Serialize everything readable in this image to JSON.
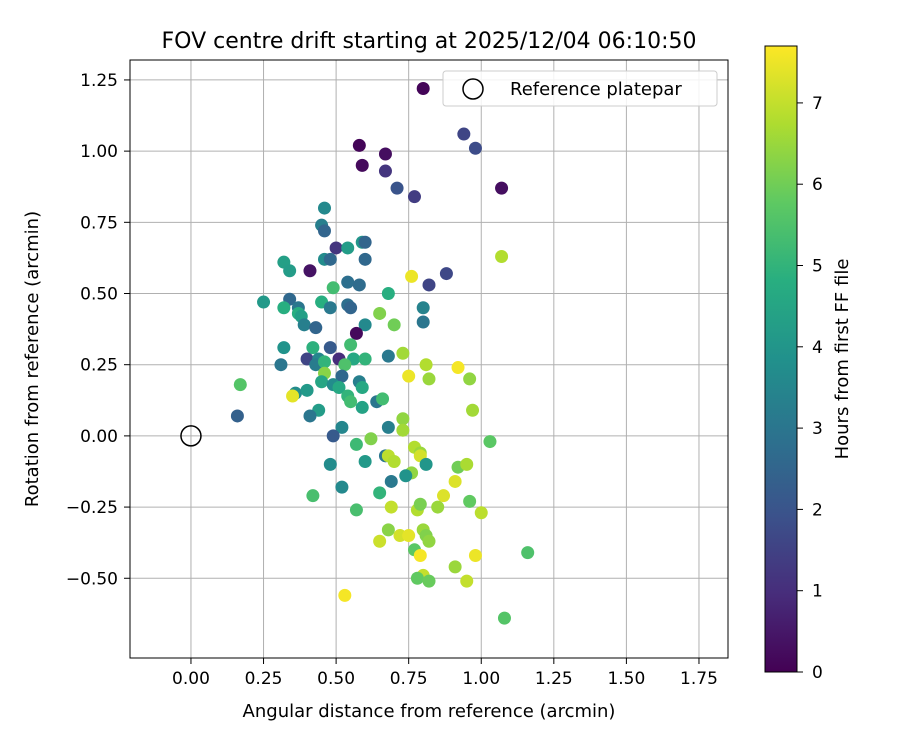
{
  "chart_data": {
    "type": "scatter",
    "title": "FOV centre drift starting at 2025/12/04 06:10:50",
    "xlabel": "Angular distance from reference (arcmin)",
    "ylabel": "Rotation from reference (arcmin)",
    "xlim": [
      -0.21,
      1.85
    ],
    "ylim": [
      -0.78,
      1.32
    ],
    "xticks": [
      0.0,
      0.25,
      0.5,
      0.75,
      1.0,
      1.25,
      1.5,
      1.75
    ],
    "xtick_labels": [
      "0.00",
      "0.25",
      "0.50",
      "0.75",
      "1.00",
      "1.25",
      "1.50",
      "1.75"
    ],
    "yticks": [
      -0.5,
      -0.25,
      0.0,
      0.25,
      0.5,
      0.75,
      1.0,
      1.25
    ],
    "ytick_labels": [
      "−0.50",
      "−0.25",
      "0.00",
      "0.25",
      "0.50",
      "0.75",
      "1.00",
      "1.25"
    ],
    "grid": true,
    "legend": {
      "location": "top-right",
      "entries": [
        "Reference platepar"
      ]
    },
    "reference_point": {
      "x": 0.0,
      "y": 0.0,
      "label": "Reference platepar"
    },
    "colorbar": {
      "label": "Hours from first FF file",
      "colormap": "viridis",
      "range": [
        0,
        7.7
      ],
      "ticks": [
        0,
        1,
        2,
        3,
        4,
        5,
        6,
        7
      ],
      "tick_labels": [
        "0",
        "1",
        "2",
        "3",
        "4",
        "5",
        "6",
        "7"
      ]
    },
    "points": [
      {
        "x": 0.8,
        "y": 1.22,
        "t": 0.1
      },
      {
        "x": 0.58,
        "y": 1.02,
        "t": 0.1
      },
      {
        "x": 0.67,
        "y": 0.99,
        "t": 0.3
      },
      {
        "x": 0.59,
        "y": 0.95,
        "t": 0.2
      },
      {
        "x": 0.94,
        "y": 1.06,
        "t": 1.6
      },
      {
        "x": 0.98,
        "y": 1.01,
        "t": 1.8
      },
      {
        "x": 0.67,
        "y": 0.93,
        "t": 1.2
      },
      {
        "x": 1.07,
        "y": 0.87,
        "t": 0.3
      },
      {
        "x": 0.71,
        "y": 0.87,
        "t": 2.0
      },
      {
        "x": 0.77,
        "y": 0.84,
        "t": 1.4
      },
      {
        "x": 0.46,
        "y": 0.8,
        "t": 3.6
      },
      {
        "x": 0.45,
        "y": 0.74,
        "t": 3.3
      },
      {
        "x": 0.46,
        "y": 0.72,
        "t": 2.5
      },
      {
        "x": 0.59,
        "y": 0.68,
        "t": 4.0
      },
      {
        "x": 0.6,
        "y": 0.68,
        "t": 2.5
      },
      {
        "x": 0.5,
        "y": 0.66,
        "t": 1.2
      },
      {
        "x": 0.54,
        "y": 0.66,
        "t": 4.2
      },
      {
        "x": 1.07,
        "y": 0.63,
        "t": 6.8
      },
      {
        "x": 0.32,
        "y": 0.61,
        "t": 4.3
      },
      {
        "x": 0.46,
        "y": 0.62,
        "t": 3.7
      },
      {
        "x": 0.48,
        "y": 0.62,
        "t": 2.6
      },
      {
        "x": 0.6,
        "y": 0.62,
        "t": 2.6
      },
      {
        "x": 0.34,
        "y": 0.58,
        "t": 4.2
      },
      {
        "x": 0.41,
        "y": 0.58,
        "t": 0.4
      },
      {
        "x": 0.76,
        "y": 0.56,
        "t": 7.5
      },
      {
        "x": 0.88,
        "y": 0.57,
        "t": 1.7
      },
      {
        "x": 0.54,
        "y": 0.54,
        "t": 2.8
      },
      {
        "x": 0.58,
        "y": 0.53,
        "t": 2.7
      },
      {
        "x": 0.82,
        "y": 0.53,
        "t": 1.6
      },
      {
        "x": 0.49,
        "y": 0.52,
        "t": 5.3
      },
      {
        "x": 0.68,
        "y": 0.5,
        "t": 4.8
      },
      {
        "x": 0.25,
        "y": 0.47,
        "t": 4.1
      },
      {
        "x": 0.34,
        "y": 0.48,
        "t": 2.6
      },
      {
        "x": 0.45,
        "y": 0.47,
        "t": 4.8
      },
      {
        "x": 0.32,
        "y": 0.45,
        "t": 4.8
      },
      {
        "x": 0.37,
        "y": 0.45,
        "t": 3.0
      },
      {
        "x": 0.54,
        "y": 0.46,
        "t": 2.8
      },
      {
        "x": 0.55,
        "y": 0.45,
        "t": 2.5
      },
      {
        "x": 0.48,
        "y": 0.45,
        "t": 3.1
      },
      {
        "x": 0.8,
        "y": 0.45,
        "t": 3.4
      },
      {
        "x": 0.37,
        "y": 0.43,
        "t": 4.8
      },
      {
        "x": 0.38,
        "y": 0.42,
        "t": 4.3
      },
      {
        "x": 0.65,
        "y": 0.43,
        "t": 6.2
      },
      {
        "x": 0.8,
        "y": 0.4,
        "t": 3.0
      },
      {
        "x": 0.39,
        "y": 0.39,
        "t": 3.3
      },
      {
        "x": 0.43,
        "y": 0.38,
        "t": 2.5
      },
      {
        "x": 0.6,
        "y": 0.39,
        "t": 3.6
      },
      {
        "x": 0.7,
        "y": 0.39,
        "t": 6.0
      },
      {
        "x": 0.57,
        "y": 0.36,
        "t": 0.2
      },
      {
        "x": 0.32,
        "y": 0.31,
        "t": 3.9
      },
      {
        "x": 0.42,
        "y": 0.31,
        "t": 4.9
      },
      {
        "x": 0.48,
        "y": 0.31,
        "t": 2.2
      },
      {
        "x": 0.55,
        "y": 0.32,
        "t": 5.3
      },
      {
        "x": 0.73,
        "y": 0.29,
        "t": 6.6
      },
      {
        "x": 0.68,
        "y": 0.28,
        "t": 3.1
      },
      {
        "x": 0.4,
        "y": 0.27,
        "t": 1.6
      },
      {
        "x": 0.44,
        "y": 0.27,
        "t": 3.5
      },
      {
        "x": 0.51,
        "y": 0.27,
        "t": 1.0
      },
      {
        "x": 0.56,
        "y": 0.27,
        "t": 4.6
      },
      {
        "x": 0.6,
        "y": 0.27,
        "t": 5.0
      },
      {
        "x": 0.31,
        "y": 0.25,
        "t": 3.0
      },
      {
        "x": 0.43,
        "y": 0.25,
        "t": 3.2
      },
      {
        "x": 0.46,
        "y": 0.26,
        "t": 5.0
      },
      {
        "x": 0.53,
        "y": 0.25,
        "t": 5.5
      },
      {
        "x": 0.81,
        "y": 0.25,
        "t": 6.8
      },
      {
        "x": 0.92,
        "y": 0.24,
        "t": 7.6
      },
      {
        "x": 0.46,
        "y": 0.22,
        "t": 6.3
      },
      {
        "x": 0.52,
        "y": 0.21,
        "t": 2.6
      },
      {
        "x": 0.75,
        "y": 0.21,
        "t": 7.5
      },
      {
        "x": 0.82,
        "y": 0.2,
        "t": 6.5
      },
      {
        "x": 0.96,
        "y": 0.2,
        "t": 6.4
      },
      {
        "x": 0.17,
        "y": 0.18,
        "t": 5.6
      },
      {
        "x": 0.45,
        "y": 0.19,
        "t": 4.5
      },
      {
        "x": 0.49,
        "y": 0.18,
        "t": 3.7
      },
      {
        "x": 0.51,
        "y": 0.17,
        "t": 4.6
      },
      {
        "x": 0.58,
        "y": 0.19,
        "t": 3.3
      },
      {
        "x": 0.59,
        "y": 0.17,
        "t": 4.6
      },
      {
        "x": 0.36,
        "y": 0.15,
        "t": 3.7
      },
      {
        "x": 0.4,
        "y": 0.16,
        "t": 4.1
      },
      {
        "x": 0.35,
        "y": 0.14,
        "t": 7.4
      },
      {
        "x": 0.54,
        "y": 0.14,
        "t": 5.0
      },
      {
        "x": 0.55,
        "y": 0.12,
        "t": 5.3
      },
      {
        "x": 0.64,
        "y": 0.12,
        "t": 3.0
      },
      {
        "x": 0.66,
        "y": 0.13,
        "t": 5.3
      },
      {
        "x": 0.44,
        "y": 0.09,
        "t": 4.2
      },
      {
        "x": 0.59,
        "y": 0.1,
        "t": 4.4
      },
      {
        "x": 0.97,
        "y": 0.09,
        "t": 6.6
      },
      {
        "x": 0.16,
        "y": 0.07,
        "t": 2.4
      },
      {
        "x": 0.41,
        "y": 0.07,
        "t": 3.0
      },
      {
        "x": 0.73,
        "y": 0.06,
        "t": 6.4
      },
      {
        "x": 0.52,
        "y": 0.03,
        "t": 3.5
      },
      {
        "x": 0.68,
        "y": 0.03,
        "t": 3.3
      },
      {
        "x": 0.73,
        "y": 0.02,
        "t": 6.6
      },
      {
        "x": 0.49,
        "y": 0.0,
        "t": 2.2
      },
      {
        "x": 0.62,
        "y": -0.01,
        "t": 6.2
      },
      {
        "x": 1.03,
        "y": -0.02,
        "t": 5.7
      },
      {
        "x": 0.57,
        "y": -0.03,
        "t": 5.2
      },
      {
        "x": 0.77,
        "y": -0.04,
        "t": 6.8
      },
      {
        "x": 0.79,
        "y": -0.06,
        "t": 6.5
      },
      {
        "x": 0.67,
        "y": -0.07,
        "t": 3.0
      },
      {
        "x": 0.68,
        "y": -0.07,
        "t": 6.9
      },
      {
        "x": 0.79,
        "y": -0.07,
        "t": 7.2
      },
      {
        "x": 0.48,
        "y": -0.1,
        "t": 3.7
      },
      {
        "x": 0.6,
        "y": -0.09,
        "t": 4.1
      },
      {
        "x": 0.7,
        "y": -0.09,
        "t": 6.8
      },
      {
        "x": 0.81,
        "y": -0.1,
        "t": 4.0
      },
      {
        "x": 0.92,
        "y": -0.11,
        "t": 6.0
      },
      {
        "x": 0.95,
        "y": -0.1,
        "t": 6.7
      },
      {
        "x": 0.76,
        "y": -0.13,
        "t": 6.4
      },
      {
        "x": 0.74,
        "y": -0.14,
        "t": 3.9
      },
      {
        "x": 0.69,
        "y": -0.16,
        "t": 3.1
      },
      {
        "x": 0.91,
        "y": -0.16,
        "t": 7.3
      },
      {
        "x": 0.52,
        "y": -0.18,
        "t": 3.6
      },
      {
        "x": 0.65,
        "y": -0.2,
        "t": 5.0
      },
      {
        "x": 0.42,
        "y": -0.21,
        "t": 5.4
      },
      {
        "x": 0.87,
        "y": -0.21,
        "t": 7.3
      },
      {
        "x": 0.96,
        "y": -0.23,
        "t": 5.8
      },
      {
        "x": 0.69,
        "y": -0.25,
        "t": 7.0
      },
      {
        "x": 0.78,
        "y": -0.26,
        "t": 6.8
      },
      {
        "x": 0.79,
        "y": -0.24,
        "t": 6.1
      },
      {
        "x": 0.85,
        "y": -0.25,
        "t": 6.5
      },
      {
        "x": 0.57,
        "y": -0.26,
        "t": 5.4
      },
      {
        "x": 1.0,
        "y": -0.27,
        "t": 6.9
      },
      {
        "x": 0.8,
        "y": -0.33,
        "t": 6.5
      },
      {
        "x": 0.68,
        "y": -0.33,
        "t": 6.3
      },
      {
        "x": 0.72,
        "y": -0.35,
        "t": 7.2
      },
      {
        "x": 0.75,
        "y": -0.35,
        "t": 7.4
      },
      {
        "x": 0.81,
        "y": -0.35,
        "t": 6.2
      },
      {
        "x": 0.82,
        "y": -0.37,
        "t": 6.4
      },
      {
        "x": 0.65,
        "y": -0.37,
        "t": 7.1
      },
      {
        "x": 0.77,
        "y": -0.4,
        "t": 5.7
      },
      {
        "x": 1.16,
        "y": -0.41,
        "t": 5.5
      },
      {
        "x": 0.79,
        "y": -0.42,
        "t": 7.6
      },
      {
        "x": 0.98,
        "y": -0.42,
        "t": 7.5
      },
      {
        "x": 0.91,
        "y": -0.46,
        "t": 6.5
      },
      {
        "x": 0.8,
        "y": -0.49,
        "t": 7.0
      },
      {
        "x": 0.78,
        "y": -0.5,
        "t": 5.8
      },
      {
        "x": 0.82,
        "y": -0.51,
        "t": 5.9
      },
      {
        "x": 0.95,
        "y": -0.51,
        "t": 7.0
      },
      {
        "x": 0.53,
        "y": -0.56,
        "t": 7.6
      },
      {
        "x": 1.08,
        "y": -0.64,
        "t": 5.6
      }
    ]
  }
}
